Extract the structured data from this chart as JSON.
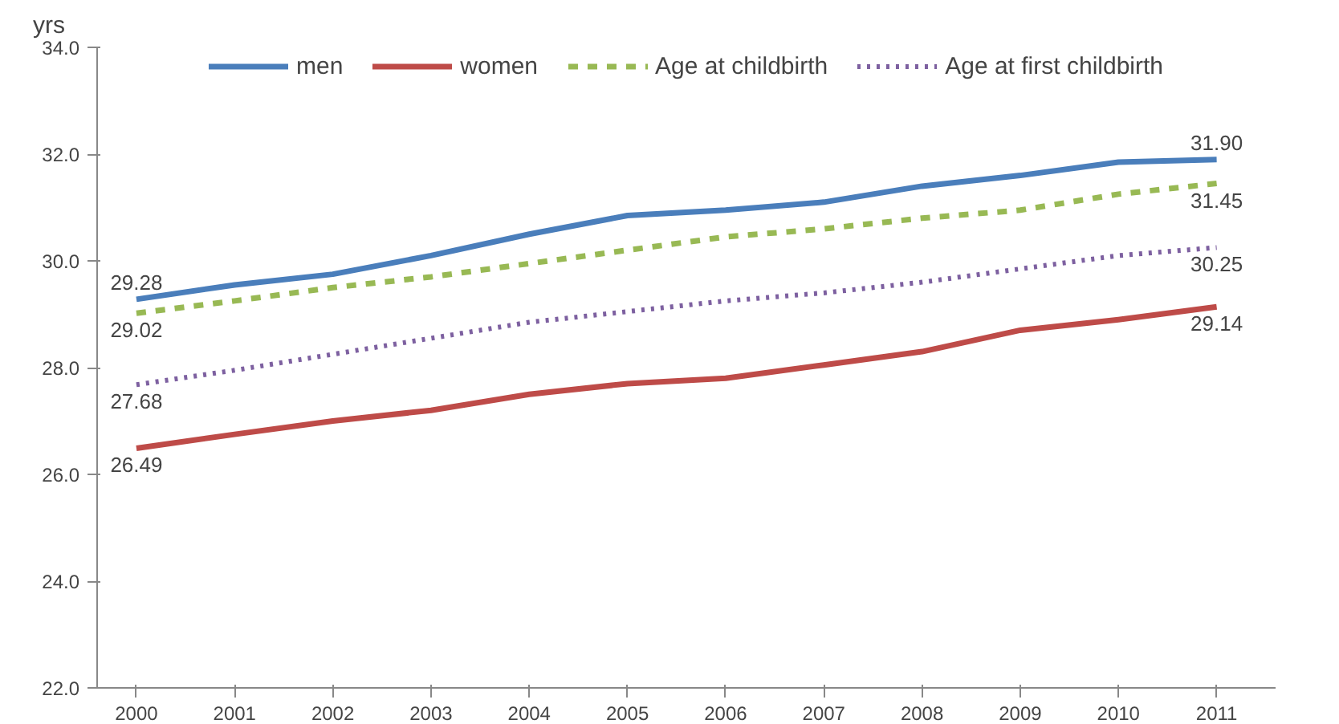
{
  "chart_data": {
    "type": "line",
    "ylabel": "yrs",
    "categories": [
      "2000",
      "2001",
      "2002",
      "2003",
      "2004",
      "2005",
      "2006",
      "2007",
      "2008",
      "2009",
      "2010",
      "2011"
    ],
    "ylim": [
      22,
      34
    ],
    "yticks": [
      {
        "value": 22,
        "label": "22.0"
      },
      {
        "value": 24,
        "label": "24.0"
      },
      {
        "value": 26,
        "label": "26.0"
      },
      {
        "value": 28,
        "label": "28.0"
      },
      {
        "value": 30,
        "label": "30.0"
      },
      {
        "value": 32,
        "label": "32.0"
      },
      {
        "value": 34,
        "label": "34.0"
      }
    ],
    "legend": "top",
    "grid": false,
    "series": [
      {
        "name": "men",
        "color": "#4a7ebb",
        "line_style": "solid",
        "values": [
          29.28,
          29.55,
          29.75,
          30.1,
          30.5,
          30.85,
          30.95,
          31.1,
          31.4,
          31.6,
          31.85,
          31.9
        ],
        "value_labels": [
          "29.28",
          null,
          null,
          null,
          null,
          null,
          null,
          null,
          null,
          null,
          null,
          "31.90"
        ]
      },
      {
        "name": "women",
        "color": "#be4b48",
        "line_style": "solid",
        "values": [
          26.49,
          26.75,
          27.0,
          27.2,
          27.5,
          27.7,
          27.8,
          28.05,
          28.3,
          28.7,
          28.9,
          29.14
        ],
        "value_labels": [
          "26.49",
          null,
          null,
          null,
          null,
          null,
          null,
          null,
          null,
          null,
          null,
          "29.14"
        ]
      },
      {
        "name": "Age at childbirth",
        "color": "#98b954",
        "line_style": "dashed",
        "values": [
          29.02,
          29.25,
          29.5,
          29.7,
          29.95,
          30.2,
          30.45,
          30.6,
          30.8,
          30.95,
          31.25,
          31.45
        ],
        "value_labels": [
          "29.02",
          null,
          null,
          null,
          null,
          null,
          null,
          null,
          null,
          null,
          null,
          "31.45"
        ]
      },
      {
        "name": "Age at first childbirth",
        "color": "#7d60a0",
        "line_style": "dotted",
        "values": [
          27.68,
          27.95,
          28.25,
          28.55,
          28.85,
          29.05,
          29.25,
          29.4,
          29.6,
          29.85,
          30.1,
          30.25
        ],
        "value_labels": [
          "27.68",
          null,
          null,
          null,
          null,
          null,
          null,
          null,
          null,
          null,
          null,
          "30.25"
        ]
      }
    ]
  }
}
